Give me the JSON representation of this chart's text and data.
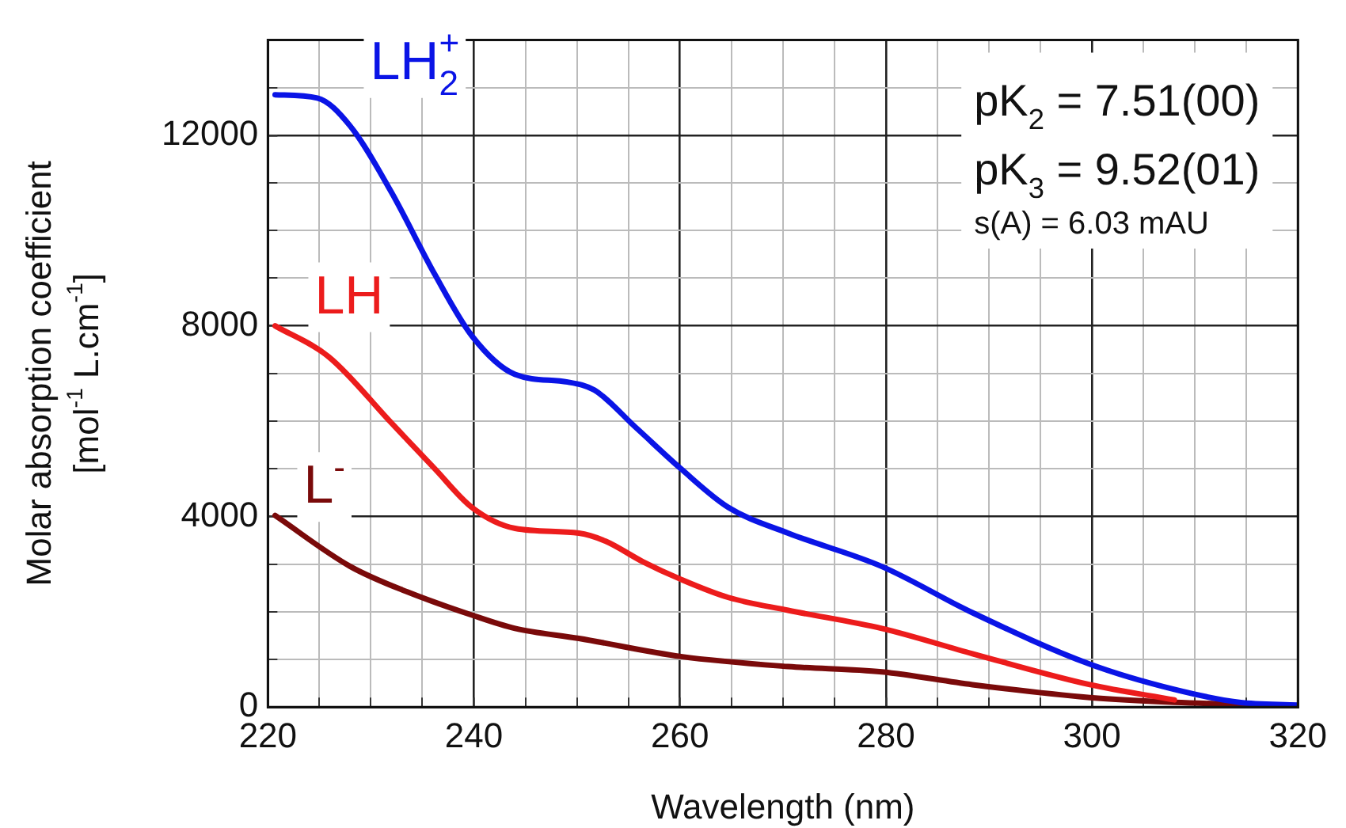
{
  "chart_data": {
    "type": "line",
    "xlabel": "Wavelength (nm)",
    "ylabel": "Molar absorption coefficient\n[mol$^{-1}$ L.cm$^{-1}$]",
    "xlim": [
      220,
      320
    ],
    "ylim": [
      0,
      14000
    ],
    "xticks": [
      220,
      {
        "value": 225,
        "label": null
      },
      {
        "value": 230,
        "label": null
      },
      {
        "value": 235,
        "label": null
      },
      240,
      {
        "value": 245,
        "label": null
      },
      {
        "value": 250,
        "label": null
      },
      {
        "value": 255,
        "label": null
      },
      260,
      {
        "value": 265,
        "label": null
      },
      {
        "value": 270,
        "label": null
      },
      {
        "value": 275,
        "label": null
      },
      280,
      {
        "value": 285,
        "label": null
      },
      {
        "value": 290,
        "label": null
      },
      {
        "value": 295,
        "label": null
      },
      300,
      {
        "value": 305,
        "label": null
      },
      {
        "value": 310,
        "label": null
      },
      {
        "value": 315,
        "label": null
      },
      320
    ],
    "yticks": [
      0,
      {
        "value": 1000,
        "label": null
      },
      {
        "value": 2000,
        "label": null
      },
      {
        "value": 3000,
        "label": null
      },
      4000,
      {
        "value": 5000,
        "label": null
      },
      {
        "value": 6000,
        "label": null
      },
      {
        "value": 7000,
        "label": null
      },
      8000,
      {
        "value": 9000,
        "label": null
      },
      {
        "value": 10000,
        "label": null
      },
      {
        "value": 11000,
        "label": null
      },
      12000,
      {
        "value": 13000,
        "label": null
      },
      {
        "value": 14000,
        "label": null
      }
    ],
    "grid": true,
    "legend": false,
    "marker": "none",
    "line_style": "solid",
    "annotations": [
      "pK$_{2}$ = 7.51(00)",
      "pK$_{3}$ = 9.52(01)",
      "s(A) = 6.03 mAU"
    ],
    "series": [
      {
        "name": "LH$_{2}$$^{+}$",
        "color": "#0a14e6",
        "x": [
          220.7,
          224.8,
          228,
          232,
          236.2,
          239.8,
          244,
          249.1,
          251.7,
          255.8,
          260.1,
          264.7,
          270.5,
          279.6,
          288.4,
          299.8,
          308,
          314.3,
          320
        ],
        "values": [
          12850,
          12780,
          12190,
          10800,
          9080,
          7790,
          6980,
          6820,
          6650,
          5850,
          5000,
          4190,
          3650,
          2950,
          1980,
          900,
          370,
          100,
          40
        ]
      },
      {
        "name": "LH",
        "color": "#ec1c1c",
        "x": [
          220.7,
          225.9,
          232,
          236.2,
          239.8,
          244,
          250.2,
          252.8,
          256.4,
          260.1,
          264.7,
          270.5,
          279.6,
          288.4,
          299.8,
          308
        ],
        "values": [
          8000,
          7350,
          5960,
          5000,
          4190,
          3750,
          3650,
          3480,
          3050,
          2680,
          2300,
          2030,
          1650,
          1120,
          470,
          150
        ]
      },
      {
        "name": "L$^{-}$",
        "color": "#7a0a0a",
        "x": [
          220.7,
          228,
          233.6,
          239.8,
          244,
          250.2,
          260.1,
          270.5,
          279.6,
          288.4,
          299.8,
          308,
          320
        ],
        "values": [
          4020,
          2950,
          2410,
          1930,
          1650,
          1440,
          1060,
          850,
          740,
          470,
          200,
          100,
          30
        ]
      }
    ]
  }
}
